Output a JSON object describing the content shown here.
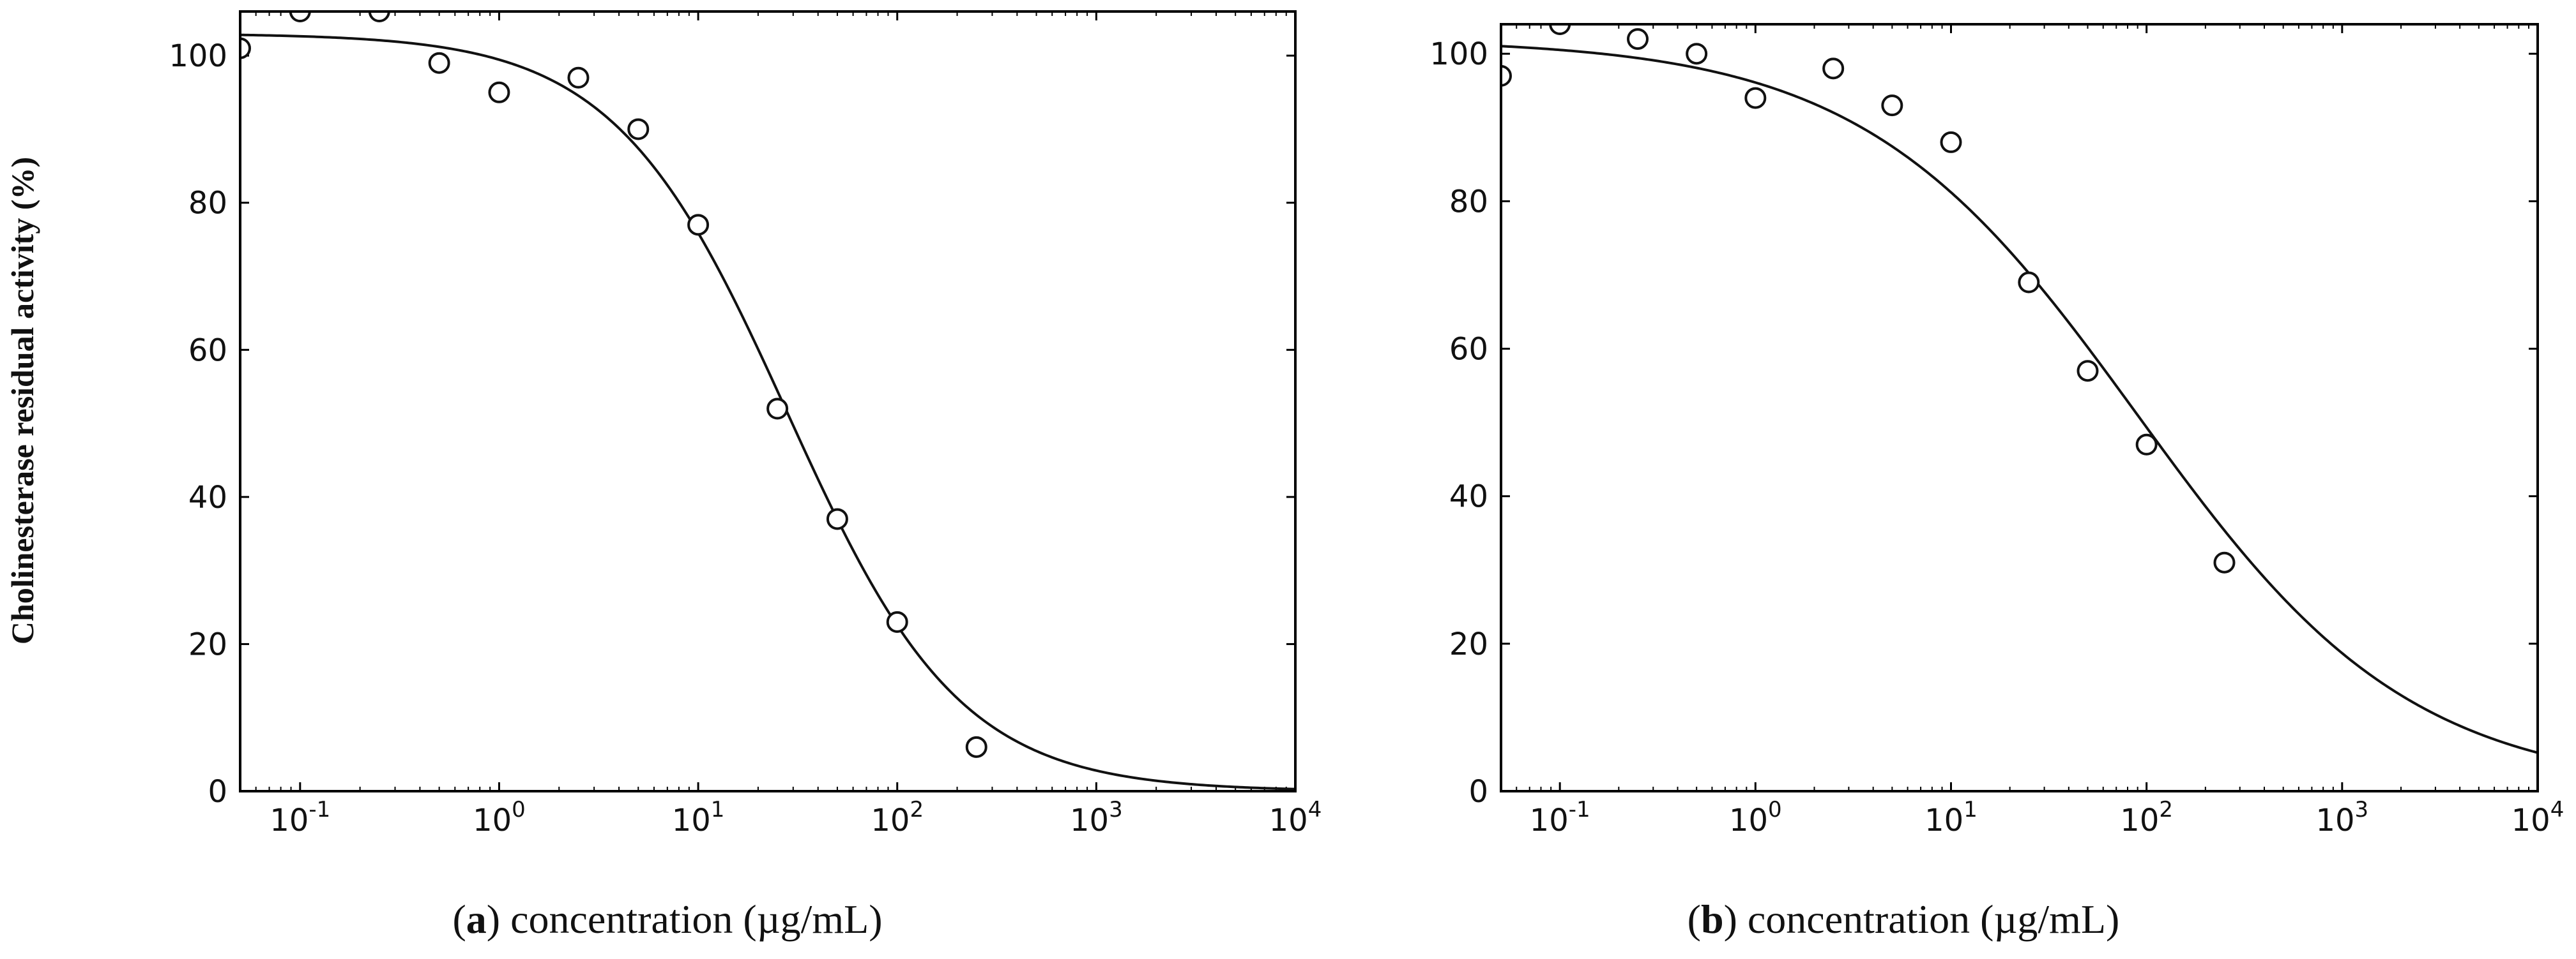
{
  "figure": {
    "ylabel": "Cholinesterase residual activity (%)",
    "panels": [
      {
        "letter": "a",
        "caption": "concentration (µg/mL)"
      },
      {
        "letter": "b",
        "caption": "concentration (µg/mL)"
      }
    ]
  },
  "chart_data": [
    {
      "type": "scatter",
      "panel": "a",
      "xlabel": "concentration (µg/mL)",
      "ylabel": "Cholinesterase residual activity (%)",
      "xscale": "log",
      "xlim": [
        0.05,
        10000
      ],
      "ylim": [
        0,
        106
      ],
      "yticks": [
        0,
        20,
        40,
        60,
        80,
        100
      ],
      "xticks": [
        {
          "base": "10",
          "exp": "-1"
        },
        {
          "base": "10",
          "exp": "0"
        },
        {
          "base": "10",
          "exp": "1"
        },
        {
          "base": "10",
          "exp": "2"
        },
        {
          "base": "10",
          "exp": "3"
        },
        {
          "base": "10",
          "exp": "4"
        }
      ],
      "points": {
        "x": [
          0.05,
          0.1,
          0.25,
          0.5,
          1,
          2.5,
          5,
          10,
          25,
          50,
          100,
          250
        ],
        "y": [
          101,
          106,
          106,
          99,
          95,
          97,
          90,
          77,
          52,
          37,
          23,
          6
        ]
      },
      "fit_curve": {
        "model": "logistic",
        "top": 103,
        "bottom": 0,
        "ic50": 28,
        "hill": 1.0
      },
      "grid": false,
      "legend": "none"
    },
    {
      "type": "scatter",
      "panel": "b",
      "xlabel": "concentration (µg/mL)",
      "ylabel": "",
      "xscale": "log",
      "xlim": [
        0.05,
        10000
      ],
      "ylim": [
        0,
        104
      ],
      "yticks": [
        0,
        20,
        40,
        60,
        80,
        100
      ],
      "xticks": [
        {
          "base": "10",
          "exp": "-1"
        },
        {
          "base": "10",
          "exp": "0"
        },
        {
          "base": "10",
          "exp": "1"
        },
        {
          "base": "10",
          "exp": "2"
        },
        {
          "base": "10",
          "exp": "3"
        },
        {
          "base": "10",
          "exp": "4"
        }
      ],
      "points": {
        "x": [
          0.05,
          0.1,
          0.25,
          0.5,
          1,
          2.5,
          5,
          10,
          25,
          50,
          100,
          250
        ],
        "y": [
          97,
          104,
          102,
          100,
          94,
          98,
          93,
          88,
          69,
          57,
          47,
          31
        ]
      },
      "fit_curve": {
        "model": "logistic",
        "top": 102,
        "bottom": 0,
        "ic50": 90,
        "hill": 0.62
      },
      "grid": false,
      "legend": "none"
    }
  ]
}
